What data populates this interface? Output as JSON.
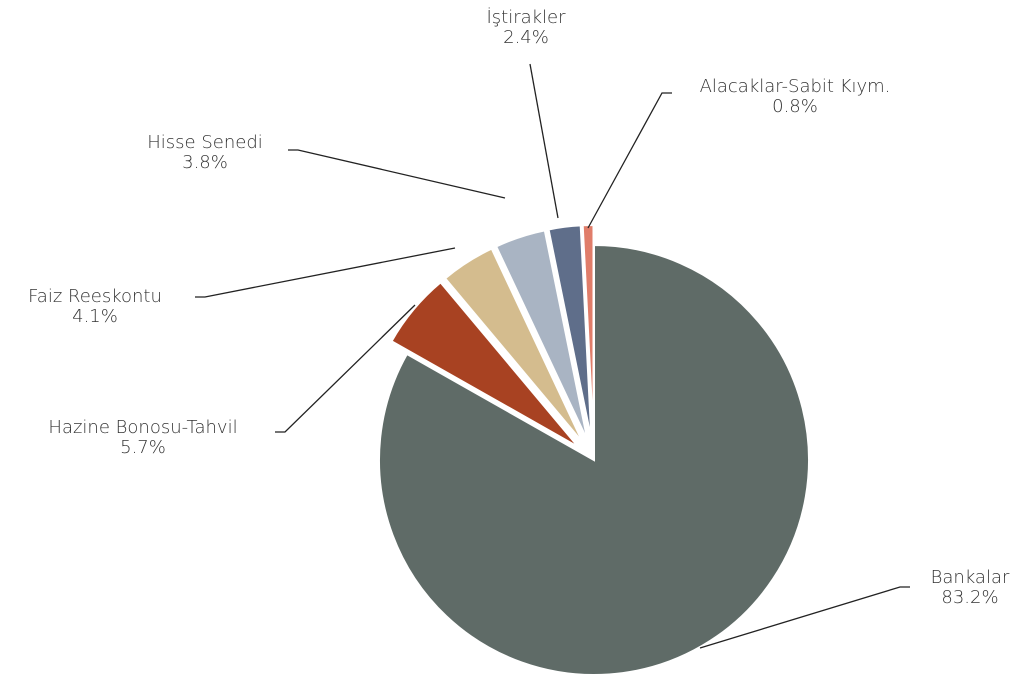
{
  "chart_data": {
    "type": "pie",
    "categories": [
      "Bankalar",
      "Hazine Bonosu-Tahvil",
      "Faiz Reeskontu",
      "Hisse Senedi",
      "İştirakler",
      "Alacaklar-Sabit Kıym."
    ],
    "values": [
      83.2,
      5.7,
      4.1,
      3.8,
      2.4,
      0.8
    ],
    "value_labels": [
      "83.2%",
      "5.7%",
      "4.1%",
      "3.8%",
      "2.4%",
      "0.8%"
    ],
    "colors": [
      "#5f6b67",
      "#a84222",
      "#d4bc8e",
      "#a9b4c3",
      "#5f6e8a",
      "#e07d6a"
    ]
  }
}
